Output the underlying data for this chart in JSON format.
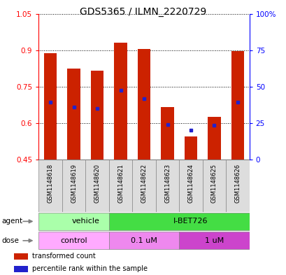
{
  "title": "GDS5365 / ILMN_2220729",
  "samples": [
    "GSM1148618",
    "GSM1148619",
    "GSM1148620",
    "GSM1148621",
    "GSM1148622",
    "GSM1148623",
    "GSM1148624",
    "GSM1148625",
    "GSM1148626"
  ],
  "bar_heights": [
    0.888,
    0.825,
    0.815,
    0.93,
    0.905,
    0.665,
    0.545,
    0.625,
    0.895
  ],
  "bar_base": 0.45,
  "percentile_values": [
    0.685,
    0.665,
    0.66,
    0.735,
    0.7,
    0.595,
    0.57,
    0.59,
    0.685
  ],
  "ylim_left": [
    0.45,
    1.05
  ],
  "ylim_right": [
    0,
    100
  ],
  "yticks_left": [
    0.45,
    0.6,
    0.75,
    0.9,
    1.05
  ],
  "yticks_right": [
    0,
    25,
    50,
    75,
    100
  ],
  "ytick_labels_left": [
    "0.45",
    "0.6",
    "0.75",
    "0.9",
    "1.05"
  ],
  "ytick_labels_right": [
    "0",
    "25",
    "50",
    "75",
    "100%"
  ],
  "bar_color": "#cc2200",
  "dot_color": "#2222cc",
  "agent_labels": [
    {
      "text": "vehicle",
      "span": [
        0,
        3
      ],
      "color": "#aaffaa"
    },
    {
      "text": "I-BET726",
      "span": [
        3,
        9
      ],
      "color": "#44dd44"
    }
  ],
  "dose_labels": [
    {
      "text": "control",
      "span": [
        0,
        3
      ],
      "color": "#ffaaff"
    },
    {
      "text": "0.1 uM",
      "span": [
        3,
        6
      ],
      "color": "#ee88ee"
    },
    {
      "text": "1 uM",
      "span": [
        6,
        9
      ],
      "color": "#cc44cc"
    }
  ],
  "legend_items": [
    {
      "label": "transformed count",
      "color": "#cc2200"
    },
    {
      "label": "percentile rank within the sample",
      "color": "#2222cc"
    }
  ],
  "bar_width": 0.55,
  "grid_yticks": [
    0.6,
    0.75,
    0.9,
    1.05
  ]
}
